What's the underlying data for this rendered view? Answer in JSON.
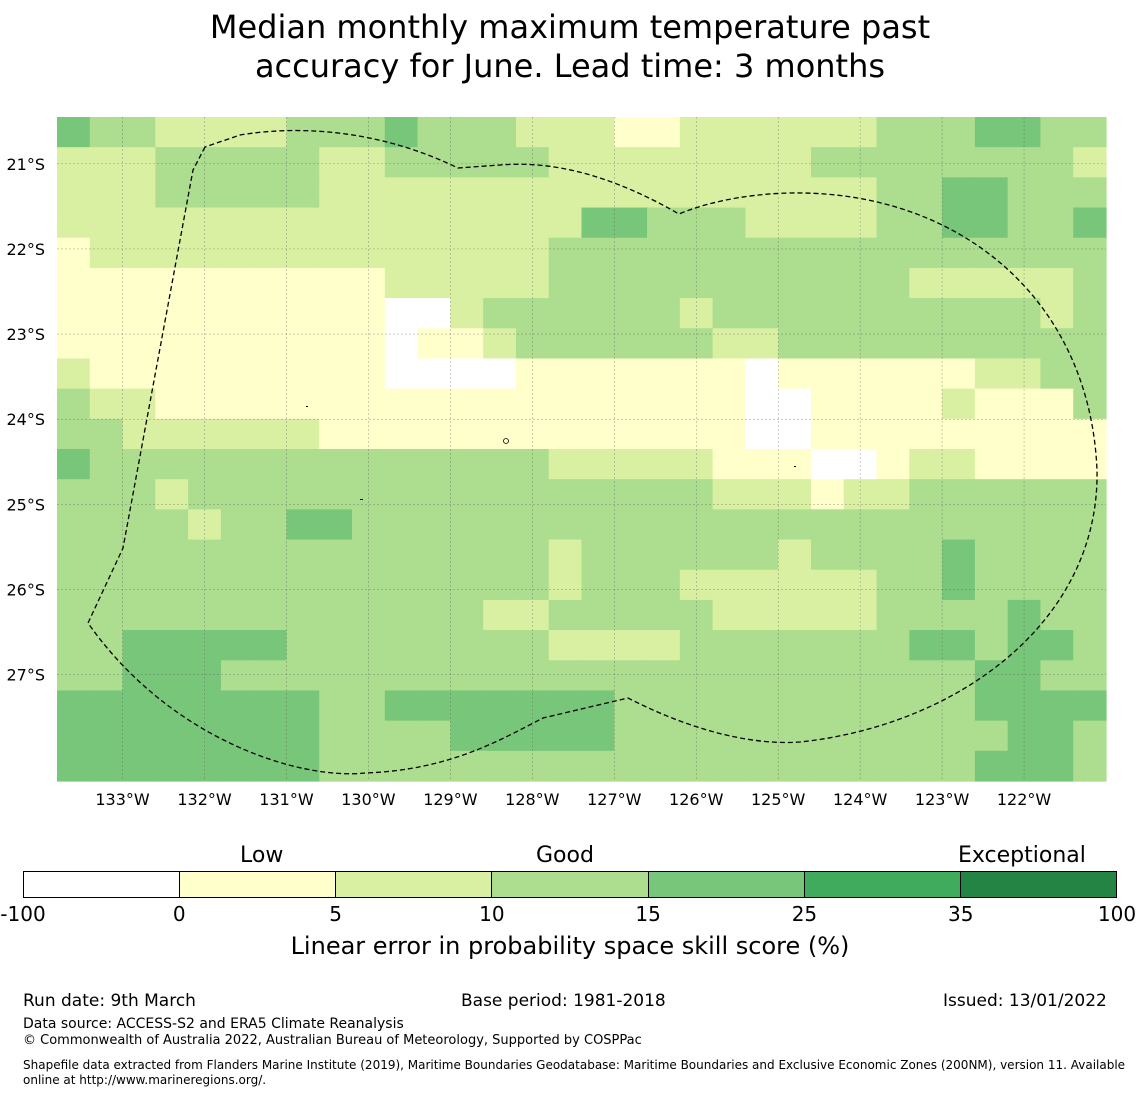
{
  "title_line1": "Median monthly maximum temperature past",
  "title_line2": "accuracy for June. Lead time: 3 months",
  "map": {
    "lon_labels": [
      "133°W",
      "132°W",
      "131°W",
      "130°W",
      "129°W",
      "128°W",
      "127°W",
      "126°W",
      "125°W",
      "124°W",
      "123°W",
      "122°W"
    ],
    "lat_labels": [
      "21°S",
      "22°S",
      "23°S",
      "24°S",
      "25°S",
      "26°S",
      "27°S"
    ],
    "lon_values": [
      -133,
      -132,
      -131,
      -130,
      -129,
      -128,
      -127,
      -126,
      -125,
      -124,
      -123,
      -122
    ],
    "lat_values": [
      -21,
      -22,
      -23,
      -24,
      -25,
      -26,
      -27
    ],
    "lon_range": [
      -133.8,
      -121.0
    ],
    "lat_range": [
      -28.25,
      -20.45
    ],
    "cell_deg": 0.5,
    "class_colors": [
      "#ffffff",
      "#ffffcc",
      "#d9f0a3",
      "#addd8e",
      "#78c679",
      "#41ab5d",
      "#238443"
    ],
    "grid_rows_north_to_south": [
      "43322223334333222112222223334433",
      "22233333223333322222222333333332",
      "22233333222222222222222223344333",
      "22222222222222224433322223344334",
      "12222222222222233333333333333333",
      "11111111112222233333333333222223",
      "11111111110023333332333333333323",
      "11111111110112333333223333333333",
      "21111111110000111111101111112233",
      "32211111111111111111100111121113",
      "33222222111111111111100111111111",
      "43333333333333322222111001221111",
      "33323333333333333333222122333333",
      "33332334433333333333333333333333",
      "33333333333333323333332333343333",
      "33333333333333323332222223343333",
      "33333333333332233333222223333433",
      "33444443333333322223333333443443",
      "33444333333333333333333333334433",
      "44444444334444444333333333334444",
      "44444444333344444333333333333443",
      "44444444333333333333333333334443"
    ],
    "speckles": [
      "a1",
      "a2",
      "a3",
      "a4"
    ]
  },
  "colorbar": {
    "group_labels": [
      "Low",
      "Good",
      "Exceptional"
    ],
    "tick_labels": [
      "-100",
      "0",
      "5",
      "10",
      "15",
      "25",
      "35",
      "100"
    ],
    "colors": [
      "#ffffff",
      "#ffffcc",
      "#d9f0a3",
      "#addd8e",
      "#78c679",
      "#41ab5d",
      "#238443"
    ],
    "title": "Linear error in probability space skill score (%)"
  },
  "footer": {
    "run_date": "Run date: 9th March",
    "base_period": "Base period: 1981-2018",
    "issued": "Issued: 13/01/2022",
    "data_source": "Data source: ACCESS-S2 and ERA5 Climate Reanalysis",
    "copyright": "© Commonwealth of Australia 2022, Australian Bureau of Meteorology, Supported by COSPPac",
    "shapefile": "Shapefile data extracted from Flanders Marine Institute (2019), Maritime Boundaries Geodatabase: Maritime Boundaries and Exclusive Economic Zones (200NM), version 11. Available online at http://www.marineregions.org/."
  }
}
